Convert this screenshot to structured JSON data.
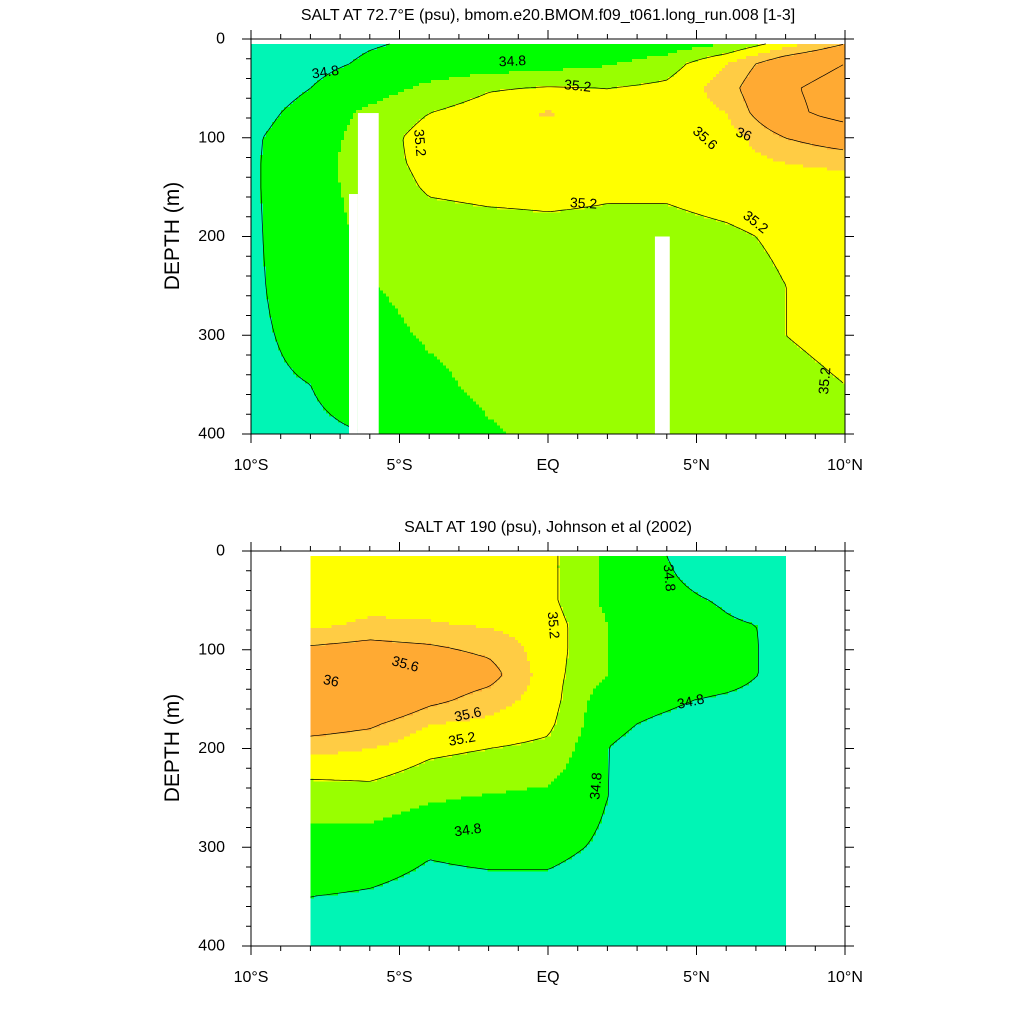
{
  "colors": {
    "level_fills": [
      "#00ffee",
      "#00f5b5",
      "#00ff00",
      "#99ff00",
      "#ffff00",
      "#ffcc44",
      "#ffaa33"
    ],
    "mask": "#ffffff",
    "line": "#000000"
  },
  "chart_data": [
    {
      "type": "contour",
      "title": "SALT AT  72.7°E (psu), bmom.e20.BMOM.f09_t061.long_run.008 [1-3]",
      "ylabel": "DEPTH (m)",
      "xlabel": "",
      "x_range": [
        -10,
        10
      ],
      "y_range": [
        0,
        400
      ],
      "y_reversed": true,
      "x_ticks": [
        {
          "value": -10,
          "label": "10°S"
        },
        {
          "value": -5,
          "label": "5°S"
        },
        {
          "value": 0,
          "label": "EQ"
        },
        {
          "value": 5,
          "label": "5°N"
        },
        {
          "value": 10,
          "label": "10°N"
        }
      ],
      "y_ticks": [
        0,
        100,
        200,
        300,
        400
      ],
      "contour_levels": [
        34.8,
        35.2,
        35.6,
        36
      ],
      "fill_boundaries": [
        34.6,
        34.8,
        35.0,
        35.2,
        35.4,
        35.6,
        35.8
      ],
      "data_extent": {
        "x": [
          -10,
          10
        ],
        "y": [
          5,
          400
        ]
      },
      "field": {
        "x": [
          -10,
          -8,
          -6,
          -4,
          -2,
          0,
          2,
          4,
          6,
          8,
          10
        ],
        "depth": [
          5,
          25,
          50,
          75,
          100,
          125,
          150,
          200,
          250,
          300,
          350,
          400
        ],
        "salinity": [
          [
            34.7,
            34.75,
            34.79,
            34.82,
            34.84,
            34.85,
            34.85,
            34.88,
            35.0,
            35.3,
            35.6
          ],
          [
            34.7,
            34.76,
            34.82,
            34.86,
            34.88,
            34.92,
            34.98,
            35.1,
            35.4,
            35.8,
            36.0
          ],
          [
            34.72,
            34.8,
            34.9,
            35.05,
            35.18,
            35.22,
            35.2,
            35.25,
            35.5,
            35.95,
            36.15
          ],
          [
            34.75,
            34.85,
            35.05,
            35.2,
            35.3,
            35.42,
            35.28,
            35.25,
            35.4,
            35.9,
            36.15
          ],
          [
            34.78,
            34.88,
            35.1,
            35.28,
            35.32,
            35.32,
            35.28,
            35.22,
            35.3,
            35.6,
            35.75
          ],
          [
            34.78,
            34.9,
            35.12,
            35.25,
            35.28,
            35.28,
            35.26,
            35.25,
            35.3,
            35.4,
            35.45
          ],
          [
            34.78,
            34.9,
            35.1,
            35.22,
            35.24,
            35.24,
            35.22,
            35.22,
            35.25,
            35.28,
            35.3
          ],
          [
            34.78,
            34.88,
            35.05,
            35.12,
            35.14,
            35.16,
            35.16,
            35.16,
            35.18,
            35.22,
            35.25
          ],
          [
            34.78,
            34.86,
            34.99,
            35.06,
            35.1,
            35.12,
            35.13,
            35.14,
            35.15,
            35.2,
            35.22
          ],
          [
            34.78,
            34.83,
            34.94,
            35.02,
            35.06,
            35.08,
            35.1,
            35.1,
            35.12,
            35.2,
            35.22
          ],
          [
            34.78,
            34.8,
            34.86,
            34.96,
            35.04,
            35.06,
            35.07,
            35.08,
            35.1,
            35.18,
            35.2
          ],
          [
            34.78,
            34.78,
            34.8,
            34.88,
            34.98,
            35.04,
            35.06,
            35.07,
            35.08,
            35.15,
            35.18
          ]
        ]
      },
      "missing_regions": [
        {
          "x": [
            -6.4,
            -5.7
          ],
          "y": [
            75,
            400
          ]
        },
        {
          "x": [
            -6.7,
            -6.4
          ],
          "y": [
            157,
            400
          ]
        },
        {
          "x": [
            3.6,
            4.1
          ],
          "y": [
            200,
            400
          ]
        }
      ],
      "contour_labels": [
        {
          "text": "34.8",
          "x": -7.5,
          "y": 33,
          "angle": -8
        },
        {
          "text": "34.8",
          "x": -1.2,
          "y": 22,
          "angle": -3
        },
        {
          "text": "35.2",
          "x": 1.0,
          "y": 47,
          "angle": 6
        },
        {
          "text": "35.2",
          "x": -4.3,
          "y": 105,
          "angle": 85
        },
        {
          "text": "35.2",
          "x": 1.2,
          "y": 166,
          "angle": 3
        },
        {
          "text": "35.2",
          "x": 7.0,
          "y": 185,
          "angle": 38
        },
        {
          "text": "35.2",
          "x": 9.3,
          "y": 346,
          "angle": -85
        },
        {
          "text": "35.6",
          "x": 5.3,
          "y": 100,
          "angle": 42
        },
        {
          "text": "36",
          "x": 6.6,
          "y": 96,
          "angle": 22
        }
      ]
    },
    {
      "type": "contour",
      "title": "SALT AT 190 (psu), Johnson et al (2002)",
      "ylabel": "DEPTH (m)",
      "xlabel": "",
      "x_range": [
        -10,
        10
      ],
      "y_range": [
        0,
        400
      ],
      "y_reversed": true,
      "x_ticks": [
        {
          "value": -10,
          "label": "10°S"
        },
        {
          "value": -5,
          "label": "5°S"
        },
        {
          "value": 0,
          "label": "EQ"
        },
        {
          "value": 5,
          "label": "5°N"
        },
        {
          "value": 10,
          "label": "10°N"
        }
      ],
      "y_ticks": [
        0,
        100,
        200,
        300,
        400
      ],
      "contour_levels": [
        34.8,
        35.2,
        35.6,
        36
      ],
      "fill_boundaries": [
        34.6,
        34.8,
        35.0,
        35.2,
        35.4,
        35.6,
        35.8
      ],
      "data_extent": {
        "x": [
          -8,
          8
        ],
        "y": [
          5,
          400
        ]
      },
      "field": {
        "x": [
          -8,
          -6,
          -4,
          -2,
          0,
          2,
          4,
          6,
          8
        ],
        "depth": [
          5,
          25,
          50,
          75,
          100,
          125,
          150,
          175,
          200,
          250,
          300,
          350,
          400
        ],
        "salinity": [
          [
            35.25,
            35.28,
            35.3,
            35.28,
            35.25,
            34.95,
            34.8,
            34.65,
            34.6
          ],
          [
            35.25,
            35.28,
            35.3,
            35.28,
            35.25,
            34.95,
            34.82,
            34.7,
            34.62
          ],
          [
            35.25,
            35.3,
            35.32,
            35.3,
            35.25,
            34.95,
            34.85,
            34.78,
            34.7
          ],
          [
            35.35,
            35.45,
            35.42,
            35.38,
            35.3,
            35.0,
            34.9,
            34.82,
            34.78
          ],
          [
            35.65,
            35.7,
            35.65,
            35.55,
            35.3,
            35.0,
            34.92,
            34.86,
            34.75
          ],
          [
            35.95,
            35.9,
            35.8,
            35.7,
            35.28,
            35.0,
            34.92,
            34.86,
            34.75
          ],
          [
            36.0,
            35.98,
            35.68,
            35.5,
            35.3,
            34.85,
            34.82,
            34.78,
            34.74
          ],
          [
            35.75,
            35.65,
            35.4,
            35.35,
            35.25,
            34.82,
            34.78,
            34.74,
            34.7
          ],
          [
            35.45,
            35.4,
            35.25,
            35.2,
            35.15,
            34.8,
            34.76,
            34.72,
            34.68
          ],
          [
            35.05,
            35.1,
            35.02,
            34.98,
            34.95,
            34.8,
            34.74,
            34.7,
            34.66
          ],
          [
            34.95,
            34.9,
            34.82,
            34.85,
            34.85,
            34.77,
            34.72,
            34.68,
            34.65
          ],
          [
            34.8,
            34.78,
            34.74,
            34.74,
            34.74,
            34.7,
            34.68,
            34.66,
            34.64
          ],
          [
            34.72,
            34.7,
            34.68,
            34.68,
            34.68,
            34.66,
            34.65,
            34.64,
            34.62
          ]
        ]
      },
      "missing_regions": [],
      "contour_labels": [
        {
          "text": "34.8",
          "x": 4.1,
          "y": 27,
          "angle": 85
        },
        {
          "text": "35.2",
          "x": 0.2,
          "y": 75,
          "angle": 85
        },
        {
          "text": "35.6",
          "x": -4.8,
          "y": 114,
          "angle": 15
        },
        {
          "text": "36",
          "x": -7.3,
          "y": 131,
          "angle": 12
        },
        {
          "text": "35.6",
          "x": -2.7,
          "y": 165,
          "angle": -12
        },
        {
          "text": "35.2",
          "x": -2.9,
          "y": 190,
          "angle": -10
        },
        {
          "text": "34.8",
          "x": 4.8,
          "y": 152,
          "angle": -12
        },
        {
          "text": "34.8",
          "x": 1.6,
          "y": 238,
          "angle": -85
        },
        {
          "text": "34.8",
          "x": -2.7,
          "y": 282,
          "angle": -8
        }
      ]
    }
  ]
}
